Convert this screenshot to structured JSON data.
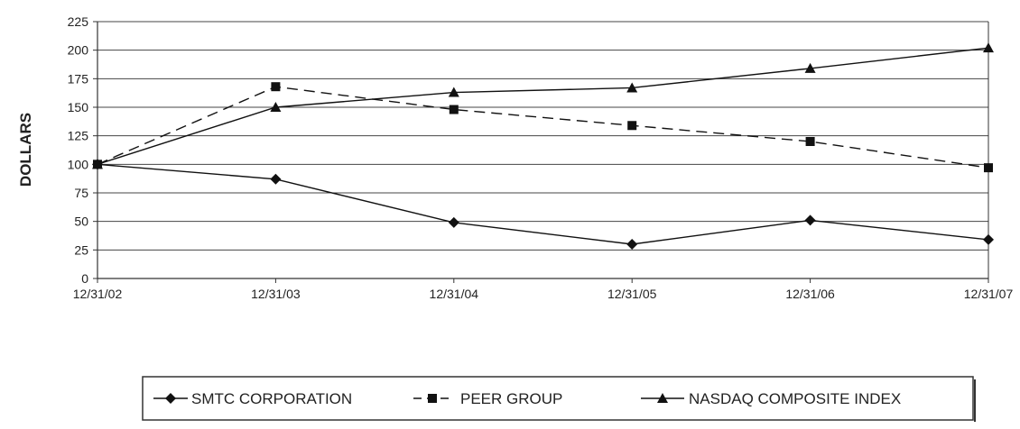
{
  "chart_data": {
    "type": "line",
    "title": "",
    "xlabel": "",
    "ylabel": "DOLLARS",
    "categories": [
      "12/31/02",
      "12/31/03",
      "12/31/04",
      "12/31/05",
      "12/31/06",
      "12/31/07"
    ],
    "ylim": [
      0,
      225
    ],
    "yticks": [
      0,
      25,
      50,
      75,
      100,
      125,
      150,
      175,
      200,
      225
    ],
    "grid": true,
    "legend_position": "bottom",
    "series": [
      {
        "name": "SMTC CORPORATION",
        "marker": "diamond",
        "line": "solid",
        "values": [
          100,
          87,
          49,
          30,
          51,
          34
        ]
      },
      {
        "name": "PEER GROUP",
        "marker": "square",
        "line": "dashed",
        "values": [
          100,
          168,
          148,
          134,
          120,
          97
        ]
      },
      {
        "name": "NASDAQ COMPOSITE INDEX",
        "marker": "triangle",
        "line": "solid",
        "values": [
          100,
          150,
          163,
          167,
          184,
          202
        ]
      }
    ]
  }
}
